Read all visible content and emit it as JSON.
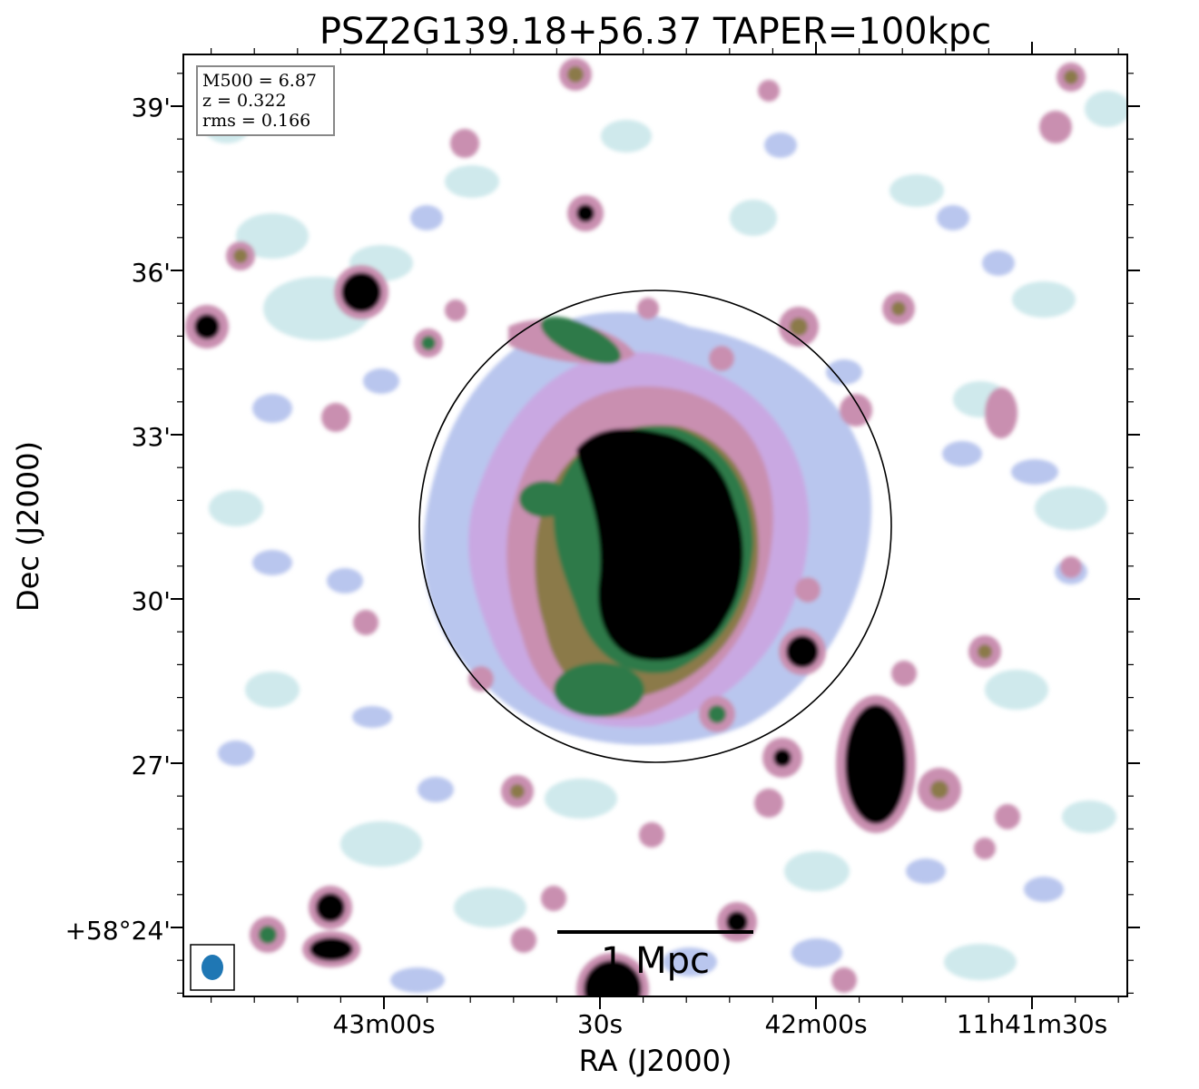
{
  "title": "PSZ2G139.18+56.37 TAPER=100kpc",
  "xlabel": "RA (J2000)",
  "ylabel": "Dec (J2000)",
  "x_ticks": [
    "43m00s",
    "30s",
    "42m00s",
    "11h41m30s"
  ],
  "y_ticks": [
    "39'",
    "36'",
    "33'",
    "30'",
    "27'",
    "+58°24'"
  ],
  "info_box": {
    "m500": "M500 = 6.87",
    "z": "z = 0.322",
    "rms": "rms = 0.166"
  },
  "scalebar_label": "1 Mpc",
  "colors": {
    "faint": "#cfe9ec",
    "low": "#b9c6ee",
    "mid_low": "#c9a8e2",
    "mid": "#c98fb0",
    "mid_high": "#8b7a4a",
    "high": "#2f7a4a",
    "peak": "#000000",
    "beam": "#1f77b4"
  }
}
